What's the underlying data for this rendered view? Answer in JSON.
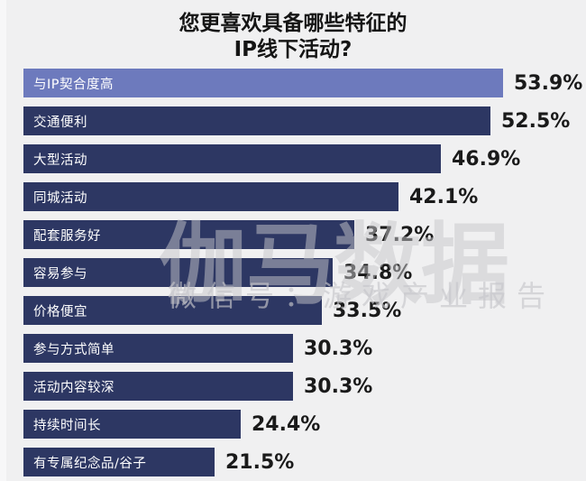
{
  "title": {
    "line1": "您更喜欢具备哪些特征的",
    "line2": "IP线下活动?"
  },
  "chart_data": {
    "type": "bar",
    "orientation": "horizontal",
    "title": "您更喜欢具备哪些特征的 IP线下活动?",
    "categories": [
      "与IP契合度高",
      "交通便利",
      "大型活动",
      "同城活动",
      "配套服务好",
      "容易参与",
      "价格便宜",
      "参与方式简单",
      "活动内容较深",
      "持续时间长",
      "有专属纪念品/谷子"
    ],
    "values": [
      53.9,
      52.5,
      46.9,
      42.1,
      37.2,
      34.8,
      33.5,
      30.3,
      30.3,
      24.4,
      21.5
    ],
    "value_labels": [
      "53.9%",
      "52.5%",
      "46.9%",
      "42.1%",
      "37.2%",
      "34.8%",
      "33.5%",
      "30.3%",
      "30.3%",
      "24.4%",
      "21.5%"
    ],
    "xlim": [
      0,
      60
    ],
    "grid": false,
    "legend": false,
    "highlight_index": 0,
    "colors": {
      "highlight_bar": "#6D7ABD",
      "bar": "#2D3763",
      "bar_label_text": "#FFFFFF",
      "value_text": "#1A1A1A",
      "background": "#F0F0F1"
    }
  },
  "watermark": {
    "line1": "伽马数据",
    "line2": "微信号：游戏产业报告",
    "color": "#C7C7CB"
  }
}
